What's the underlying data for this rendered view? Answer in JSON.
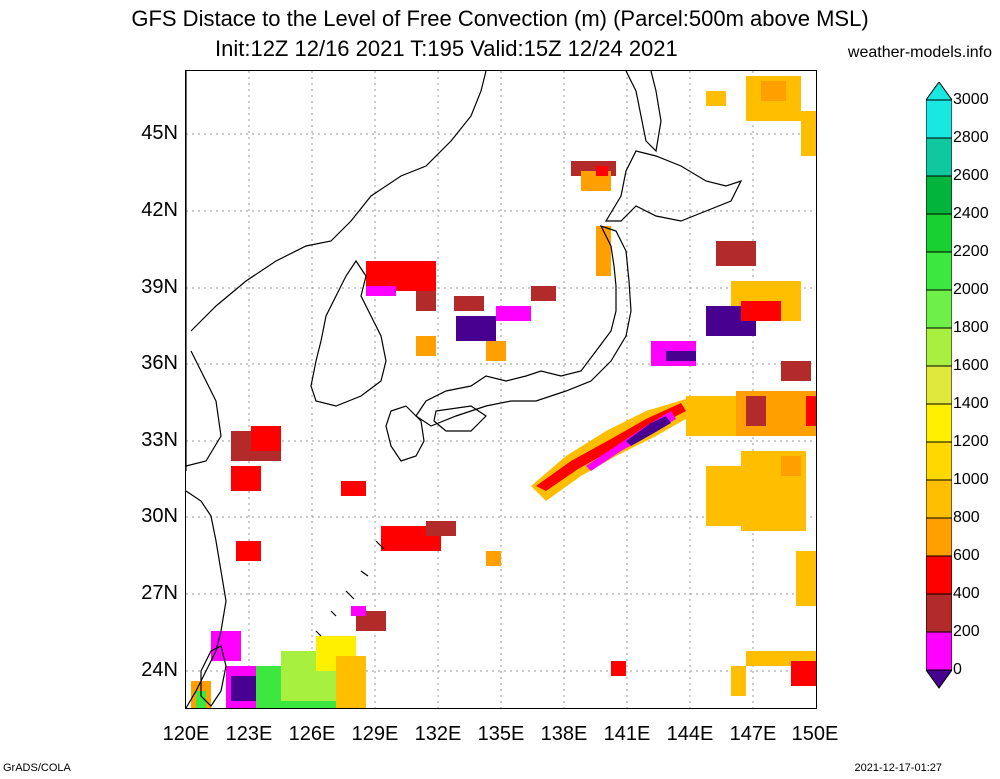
{
  "title_line1": "GFS Distace to the Level of Free Convection (m) (Parcel:500m above MSL)",
  "title_line2": "Init:12Z 12/16 2021 T:195 Valid:15Z 12/24 2021",
  "site": "weather-models.info",
  "lat_labels": [
    "45N",
    "42N",
    "39N",
    "36N",
    "33N",
    "30N",
    "27N",
    "24N"
  ],
  "lon_labels": [
    "120E",
    "123E",
    "126E",
    "129E",
    "132E",
    "135E",
    "138E",
    "141E",
    "144E",
    "147E",
    "150E"
  ],
  "colorbar": {
    "levels": [
      "3000",
      "2800",
      "2600",
      "2400",
      "2200",
      "2000",
      "1800",
      "1600",
      "1400",
      "1200",
      "1000",
      "800",
      "600",
      "400",
      "200",
      "0"
    ],
    "colors": [
      "#18e8e0",
      "#10c8a0",
      "#00b43c",
      "#18d030",
      "#3ce840",
      "#6ef048",
      "#a8f040",
      "#e0e83c",
      "#fff000",
      "#ffd800",
      "#ffbf00",
      "#ffa000",
      "#ff0000",
      "#b22a2a",
      "#ff00ff",
      "#480090"
    ]
  },
  "footer_left": "GrADS/COLA",
  "footer_right": "2021-12-17-01:27"
}
